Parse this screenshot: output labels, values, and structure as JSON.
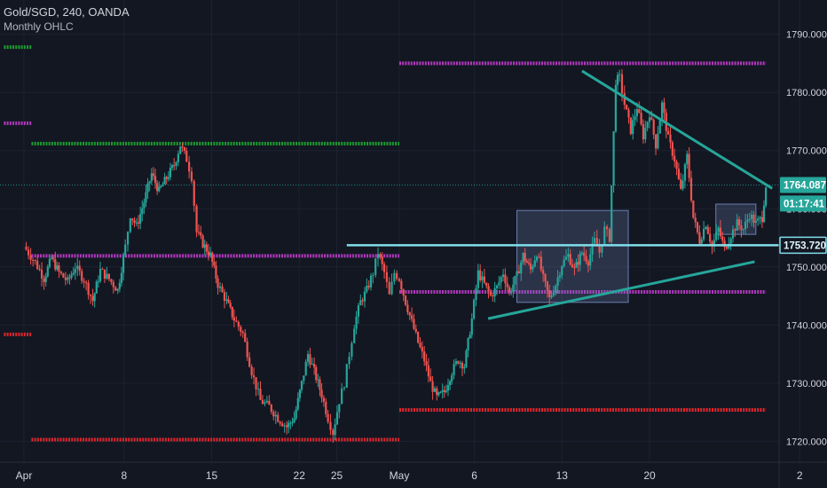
{
  "legend": {
    "symbol_line": "Gold/SGD, 240, OANDA",
    "study_line": "Monthly OHLC"
  },
  "colors": {
    "background": "#131722",
    "up": "#26a69a",
    "down": "#ef5350",
    "grid": "#1e2230",
    "axis_text": "#d1d4dc",
    "green_level": "#1b9e2f",
    "magenta_level": "#b338c0",
    "red_level": "#e0262c",
    "trendline": "#26a69a",
    "horizontal_line": "#80deea",
    "box": "#6a7fb0"
  },
  "chart_data": {
    "type": "candlestick",
    "symbol": "Gold/SGD",
    "interval": "240",
    "source": "OANDA",
    "y_axis": {
      "ylim": [
        1716.4,
        1795.9
      ],
      "ticks": [
        1720,
        1730,
        1740,
        1750,
        1760,
        1770,
        1780,
        1790
      ],
      "tick_labels": [
        "1720.000",
        "1730.000",
        "1740.000",
        "1750.000",
        "1760.000",
        "1770.000",
        "1780.000",
        "1790.000"
      ]
    },
    "x_axis": {
      "tick_labels": [
        "Apr",
        "8",
        "15",
        "22",
        "25",
        "May",
        "6",
        "13",
        "20",
        "2"
      ],
      "tick_days": [
        0,
        8,
        15,
        22,
        25,
        30,
        36,
        43,
        50,
        62
      ]
    },
    "price_labels": [
      {
        "text": "1764.087",
        "value": 1764.087
      },
      {
        "text": "01:17:41",
        "value": 1760.9
      },
      {
        "text": "1753.720",
        "value": 1753.72
      }
    ],
    "current_price": 1764.087,
    "countdown": "01:17:41",
    "monthly_ohlc_levels": [
      {
        "kind": "open",
        "value": 1787.8,
        "from": -1.6,
        "to": 0.6
      },
      {
        "kind": "high",
        "value": 1774.7,
        "from": -1.6,
        "to": 0.6
      },
      {
        "kind": "low",
        "value": 1738.4,
        "from": -1.6,
        "to": 0.6
      },
      {
        "kind": "open",
        "value": 1771.2,
        "from": 0.6,
        "to": 30.0
      },
      {
        "kind": "close",
        "value": 1751.9,
        "from": 0.6,
        "to": 30.0
      },
      {
        "kind": "low",
        "value": 1720.3,
        "from": 0.6,
        "to": 30.0
      },
      {
        "kind": "high",
        "value": 1785.0,
        "from": 30.0,
        "to": 59.3
      },
      {
        "kind": "close",
        "value": 1745.7,
        "from": 30.0,
        "to": 59.3
      },
      {
        "kind": "low",
        "value": 1725.4,
        "from": 30.0,
        "to": 59.3
      }
    ],
    "horizontal_line": {
      "value": 1753.72,
      "from": 25.8,
      "to": 62.0
    },
    "trendlines": [
      {
        "from": {
          "day": 44.6,
          "price": 1783.7
        },
        "to": {
          "day": 59.8,
          "price": 1763.5
        }
      },
      {
        "from": {
          "day": 37.1,
          "price": 1741.1
        },
        "to": {
          "day": 58.4,
          "price": 1750.9
        }
      }
    ],
    "boxes": [
      {
        "day_from": 39.4,
        "day_to": 48.3,
        "price_top": 1759.7,
        "price_bottom": 1743.9
      },
      {
        "day_from": 55.3,
        "day_to": 58.5,
        "price_top": 1760.8,
        "price_bottom": 1755.6
      }
    ],
    "candle_path": [
      [
        0.0,
        1753.5
      ],
      [
        0.9,
        1750.8
      ],
      [
        1.6,
        1748.0
      ],
      [
        2.2,
        1751.5
      ],
      [
        2.8,
        1749.0
      ],
      [
        3.5,
        1747.5
      ],
      [
        4.1,
        1750.0
      ],
      [
        4.8,
        1747.8
      ],
      [
        5.5,
        1744.2
      ],
      [
        6.1,
        1749.4
      ],
      [
        6.8,
        1747.9
      ],
      [
        7.5,
        1746.0
      ],
      [
        8.1,
        1753.5
      ],
      [
        8.5,
        1759.0
      ],
      [
        9.0,
        1757.0
      ],
      [
        9.6,
        1761.2
      ],
      [
        10.2,
        1766.0
      ],
      [
        10.8,
        1763.0
      ],
      [
        11.4,
        1765.3
      ],
      [
        12.0,
        1767.5
      ],
      [
        12.5,
        1771.0
      ],
      [
        13.0,
        1768.5
      ],
      [
        13.4,
        1765.5
      ],
      [
        13.8,
        1756.0
      ],
      [
        14.3,
        1754.0
      ],
      [
        14.9,
        1752.0
      ],
      [
        15.5,
        1747.0
      ],
      [
        16.2,
        1744.0
      ],
      [
        16.8,
        1741.0
      ],
      [
        17.5,
        1738.5
      ],
      [
        18.2,
        1732.0
      ],
      [
        18.9,
        1727.0
      ],
      [
        19.6,
        1726.0
      ],
      [
        20.3,
        1724.0
      ],
      [
        21.0,
        1722.5
      ],
      [
        21.6,
        1724.0
      ],
      [
        22.2,
        1730.0
      ],
      [
        22.7,
        1735.0
      ],
      [
        23.2,
        1732.0
      ],
      [
        23.8,
        1728.0
      ],
      [
        24.3,
        1724.0
      ],
      [
        24.7,
        1721.5
      ],
      [
        25.2,
        1727.0
      ],
      [
        25.6,
        1730.0
      ],
      [
        26.0,
        1735.0
      ],
      [
        26.4,
        1740.0
      ],
      [
        26.9,
        1744.0
      ],
      [
        27.4,
        1746.0
      ],
      [
        27.9,
        1749.0
      ],
      [
        28.3,
        1752.5
      ],
      [
        28.8,
        1749.0
      ],
      [
        29.2,
        1745.0
      ],
      [
        29.6,
        1749.0
      ],
      [
        30.0,
        1748.0
      ],
      [
        30.5,
        1744.0
      ],
      [
        31.0,
        1740.5
      ],
      [
        31.5,
        1737.0
      ],
      [
        32.0,
        1734.0
      ],
      [
        32.5,
        1730.0
      ],
      [
        33.0,
        1727.5
      ],
      [
        33.6,
        1728.5
      ],
      [
        34.2,
        1732.0
      ],
      [
        34.7,
        1734.0
      ],
      [
        35.2,
        1733.0
      ],
      [
        35.8,
        1741.0
      ],
      [
        36.3,
        1749.0
      ],
      [
        36.8,
        1747.0
      ],
      [
        37.3,
        1745.0
      ],
      [
        37.8,
        1746.5
      ],
      [
        38.3,
        1749.0
      ],
      [
        38.8,
        1745.5
      ],
      [
        39.4,
        1748.5
      ],
      [
        39.9,
        1752.0
      ],
      [
        40.5,
        1749.5
      ],
      [
        41.0,
        1752.5
      ],
      [
        41.5,
        1748.0
      ],
      [
        42.0,
        1744.5
      ],
      [
        42.5,
        1747.0
      ],
      [
        43.0,
        1750.5
      ],
      [
        43.5,
        1752.0
      ],
      [
        44.0,
        1749.5
      ],
      [
        44.6,
        1752.5
      ],
      [
        45.1,
        1751.0
      ],
      [
        45.6,
        1754.5
      ],
      [
        46.0,
        1752.5
      ],
      [
        46.4,
        1756.5
      ],
      [
        46.8,
        1755.0
      ],
      [
        47.3,
        1782.0
      ],
      [
        47.6,
        1782.5
      ],
      [
        48.0,
        1778.0
      ],
      [
        48.5,
        1773.5
      ],
      [
        49.0,
        1777.5
      ],
      [
        49.5,
        1772.5
      ],
      [
        50.0,
        1776.5
      ],
      [
        50.5,
        1771.0
      ],
      [
        51.0,
        1778.0
      ],
      [
        51.5,
        1772.0
      ],
      [
        52.0,
        1768.5
      ],
      [
        52.5,
        1763.0
      ],
      [
        53.0,
        1769.0
      ],
      [
        53.5,
        1758.5
      ],
      [
        54.0,
        1754.5
      ],
      [
        54.5,
        1757.5
      ],
      [
        55.0,
        1753.5
      ],
      [
        55.5,
        1756.5
      ],
      [
        56.0,
        1753.0
      ],
      [
        56.5,
        1755.5
      ],
      [
        57.0,
        1757.5
      ],
      [
        57.5,
        1756.5
      ],
      [
        58.0,
        1759.0
      ],
      [
        58.5,
        1757.5
      ],
      [
        59.0,
        1758.5
      ],
      [
        59.3,
        1764.1
      ]
    ]
  }
}
